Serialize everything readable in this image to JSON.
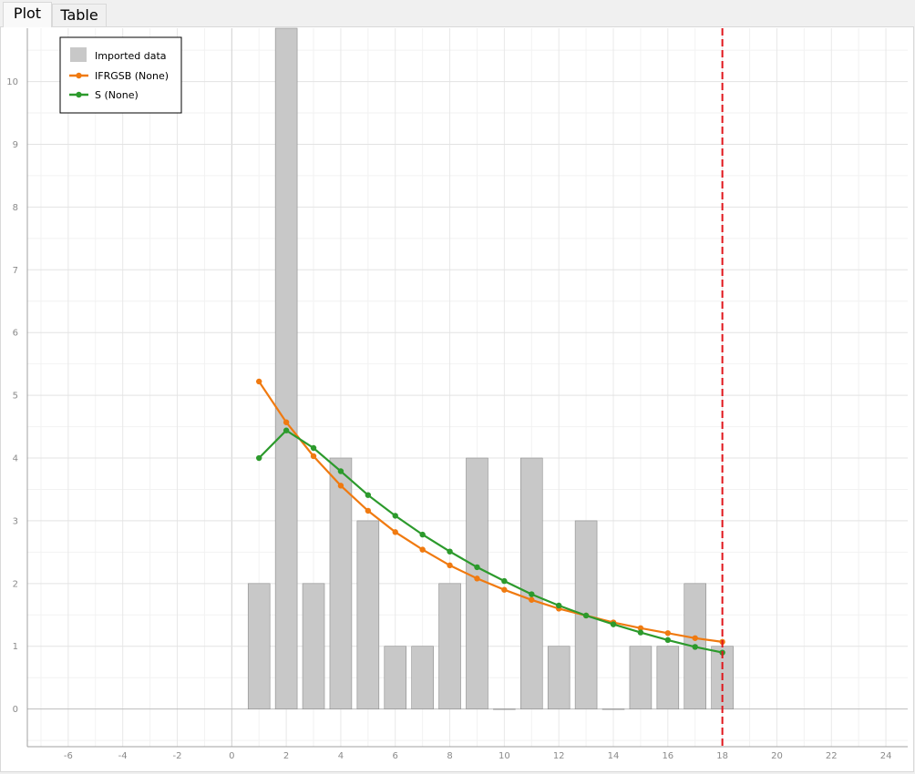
{
  "tabs": [
    {
      "label": "Plot",
      "active": true
    },
    {
      "label": "Table",
      "active": false
    }
  ],
  "colors": {
    "bars": "#c8c8c8",
    "bar_border": "#8c8c8c",
    "series_1": "#f07a10",
    "series_2": "#2c9a2c",
    "vline": "#e0161c"
  },
  "chart_data": {
    "type": "bar",
    "title": "",
    "xlabel": "",
    "ylabel": "",
    "xlim": [
      -7.5,
      24.8
    ],
    "ylim": [
      -0.6,
      10.85
    ],
    "xticks": [
      -6,
      -4,
      -2,
      0,
      2,
      4,
      6,
      8,
      10,
      12,
      14,
      16,
      18,
      20,
      22,
      24
    ],
    "yticks": [
      0,
      1,
      2,
      3,
      4,
      5,
      6,
      7,
      8,
      9,
      10
    ],
    "grid": true,
    "legend_position": "top-left",
    "bars": {
      "name": "Imported data",
      "x": [
        1,
        2,
        3,
        4,
        5,
        6,
        7,
        8,
        9,
        10,
        11,
        12,
        13,
        14,
        15,
        16,
        17,
        18
      ],
      "values": [
        2,
        11,
        2,
        4,
        3,
        1,
        1,
        2,
        4,
        0,
        4,
        1,
        3,
        0,
        1,
        1,
        2,
        1
      ]
    },
    "series": [
      {
        "name": "IFRGSB (None)",
        "x": [
          1,
          2,
          3,
          4,
          5,
          6,
          7,
          8,
          9,
          10,
          11,
          12,
          13,
          14,
          15,
          16,
          17,
          18
        ],
        "values": [
          5.22,
          4.57,
          4.03,
          3.56,
          3.16,
          2.82,
          2.54,
          2.29,
          2.08,
          1.9,
          1.74,
          1.6,
          1.49,
          1.38,
          1.29,
          1.21,
          1.13,
          1.07
        ]
      },
      {
        "name": "S (None)",
        "x": [
          1,
          2,
          3,
          4,
          5,
          6,
          7,
          8,
          9,
          10,
          11,
          12,
          13,
          14,
          15,
          16,
          17,
          18
        ],
        "values": [
          4.0,
          4.44,
          4.16,
          3.79,
          3.41,
          3.08,
          2.78,
          2.51,
          2.26,
          2.04,
          1.83,
          1.65,
          1.49,
          1.35,
          1.22,
          1.1,
          0.99,
          0.9
        ]
      }
    ],
    "vline": {
      "x": 18,
      "style": "dashed"
    }
  }
}
